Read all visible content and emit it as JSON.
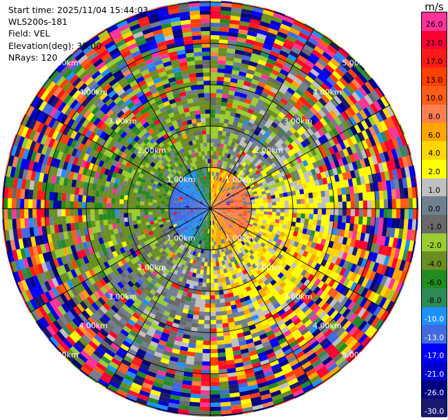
{
  "info": {
    "start_time": "Start time: 2025/11/04 15:44:03",
    "instrument": "WLS200s-181",
    "field": "Field: VEL",
    "elevation": "Elevation(deg): 35.00",
    "nrays": "NRays: 120"
  },
  "colorbar": {
    "unit": "m/s",
    "levels": [
      "26.0",
      "21.0",
      "17.0",
      "13.0",
      "10.0",
      "8.0",
      "6.0",
      "4.0",
      "2.0",
      "1.0",
      "0.0",
      "-1.0",
      "-2.0",
      "-4.0",
      "-6.0",
      "-8.0",
      "-10.0",
      "-13.0",
      "-17.0",
      "-21.0",
      "-26.0",
      "-30.0"
    ],
    "colors": [
      "#ff3399",
      "#ff0033",
      "#ff1a1a",
      "#ff4000",
      "#ff5c1a",
      "#ff7f50",
      "#ffa500",
      "#ffd700",
      "#ffff00",
      "#c0c0c0",
      "#708090",
      "#696969",
      "#9acd32",
      "#6b8e23",
      "#228b22",
      "#2e8b57",
      "#1e90ff",
      "#4169e1",
      "#0000ff",
      "#0000cd",
      "#000080",
      "#191970"
    ]
  },
  "chart_data": {
    "type": "heatmap",
    "projection": "polar (PPI)",
    "field": "VEL",
    "unit": "m/s",
    "elevation_deg": 35.0,
    "n_rays": 120,
    "range_rings_km": [
      1.0,
      2.0,
      3.0,
      4.0,
      5.0
    ],
    "ring_label_text": [
      "1.00km",
      "2.00km",
      "3.00km",
      "4.00km",
      "5.00km"
    ],
    "color_levels": [
      26.0,
      21.0,
      17.0,
      13.0,
      10.0,
      8.0,
      6.0,
      4.0,
      2.0,
      1.0,
      0.0,
      -1.0,
      -2.0,
      -4.0,
      -6.0,
      -8.0,
      -10.0,
      -13.0,
      -17.0,
      -21.0,
      -26.0,
      -30.0
    ],
    "velocity_pattern": {
      "near_range_west_ms": -10.0,
      "near_range_east_ms": 8.0,
      "mid_range_north_ms": -2.0,
      "mid_range_south_ms": 4.0,
      "far_range": "noise (random values across full scale)"
    },
    "grid": true,
    "spokes_deg": [
      0,
      30,
      60,
      90,
      120,
      150,
      180,
      210,
      240,
      270,
      300,
      330
    ]
  }
}
